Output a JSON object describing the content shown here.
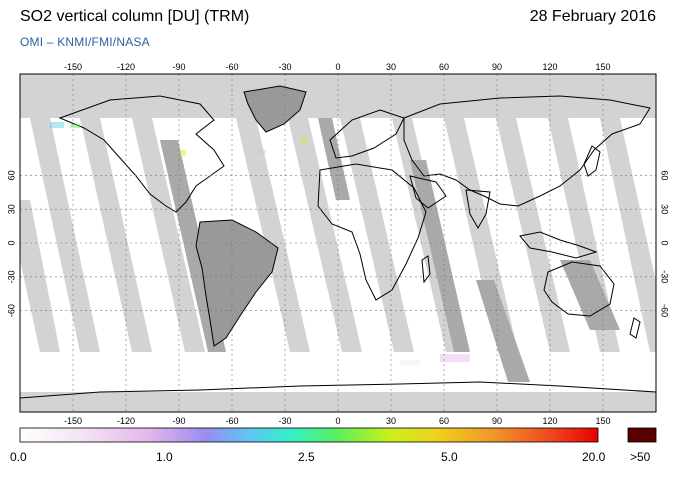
{
  "header": {
    "title": "SO2 vertical column [DU] (TRM)",
    "date": "28 February 2016",
    "credit": "OMI  –  KNMI/FMI/NASA"
  },
  "map": {
    "lon_ticks": [
      "-150",
      "-120",
      "-90",
      "-60",
      "-30",
      "0",
      "30",
      "60",
      "90",
      "120",
      "150"
    ],
    "lat_ticks": [
      "60",
      "30",
      "0",
      "-30",
      "-60"
    ]
  },
  "colorbar": {
    "labels": [
      "0.0",
      "1.0",
      "2.5",
      "5.0",
      "20.0"
    ],
    "over_label": ">50",
    "colors": [
      "#ffffff",
      "#f4e6f4",
      "#e6b8ec",
      "#9a8cf0",
      "#5cc8f0",
      "#34f0c8",
      "#5af05a",
      "#c8f01e",
      "#f0d21e",
      "#f09628",
      "#f0461e",
      "#e60000",
      "#5a0000"
    ]
  },
  "colors": {
    "no_data": "#d3d3d3",
    "orbit_gap": "#a9a9a9",
    "land_dark": "#999999"
  }
}
